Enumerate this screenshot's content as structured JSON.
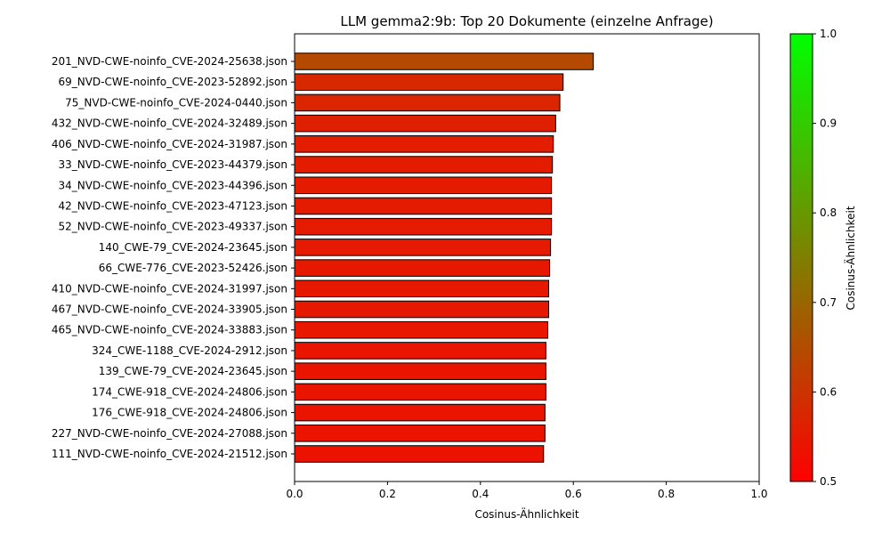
{
  "chart_data": {
    "type": "bar",
    "orientation": "horizontal",
    "title": "LLM gemma2:9b: Top 20 Dokumente (einzelne Anfrage)",
    "xlabel": "Cosinus-Ähnlichkeit",
    "ylabel": "",
    "xlim": [
      0,
      1
    ],
    "x_ticks": [
      "0.0",
      "0.2",
      "0.4",
      "0.6",
      "0.8",
      "1.0"
    ],
    "grid": false,
    "categories": [
      "201_NVD-CWE-noinfo_CVE-2024-25638.json",
      "69_NVD-CWE-noinfo_CVE-2023-52892.json",
      "75_NVD-CWE-noinfo_CVE-2024-0440.json",
      "432_NVD-CWE-noinfo_CVE-2024-32489.json",
      "406_NVD-CWE-noinfo_CVE-2024-31987.json",
      "33_NVD-CWE-noinfo_CVE-2023-44379.json",
      "34_NVD-CWE-noinfo_CVE-2023-44396.json",
      "42_NVD-CWE-noinfo_CVE-2023-47123.json",
      "52_NVD-CWE-noinfo_CVE-2023-49337.json",
      "140_CWE-79_CVE-2024-23645.json",
      "66_CWE-776_CVE-2023-52426.json",
      "410_NVD-CWE-noinfo_CVE-2024-31997.json",
      "467_NVD-CWE-noinfo_CVE-2024-33905.json",
      "465_NVD-CWE-noinfo_CVE-2024-33883.json",
      "324_CWE-1188_CVE-2024-2912.json",
      "139_CWE-79_CVE-2024-23645.json",
      "174_CWE-918_CVE-2024-24806.json",
      "176_CWE-918_CVE-2024-24806.json",
      "227_NVD-CWE-noinfo_CVE-2024-27088.json",
      "111_NVD-CWE-noinfo_CVE-2024-21512.json"
    ],
    "values": [
      0.643,
      0.578,
      0.571,
      0.562,
      0.557,
      0.555,
      0.553,
      0.553,
      0.553,
      0.551,
      0.549,
      0.547,
      0.547,
      0.545,
      0.541,
      0.541,
      0.541,
      0.539,
      0.539,
      0.536
    ],
    "colorbar": {
      "label": "Cosinus-Ähnlichkeit",
      "range": [
        0.5,
        1.0
      ],
      "ticks": [
        "0.5",
        "0.6",
        "0.7",
        "0.8",
        "0.9",
        "1.0"
      ],
      "color_low": "#ff0000",
      "color_high": "#00ff00"
    }
  }
}
